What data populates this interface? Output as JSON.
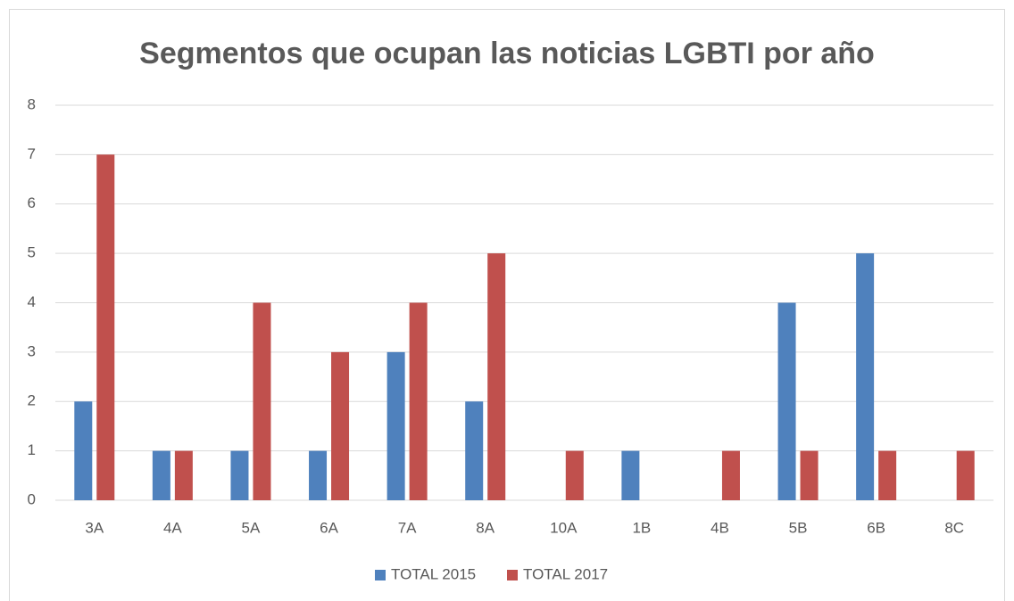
{
  "chart_data": {
    "type": "bar",
    "title": "Segmentos que ocupan las noticias LGBTI por año",
    "categories": [
      "3A",
      "4A",
      "5A",
      "6A",
      "7A",
      "8A",
      "10A",
      "1B",
      "4B",
      "5B",
      "6B",
      "8C"
    ],
    "series": [
      {
        "name": "TOTAL 2015",
        "color": "#4f81bd",
        "values": [
          2,
          1,
          1,
          1,
          3,
          2,
          0,
          1,
          0,
          4,
          5,
          0
        ]
      },
      {
        "name": "TOTAL 2017",
        "color": "#c0504d",
        "values": [
          7,
          1,
          4,
          3,
          4,
          5,
          1,
          0,
          1,
          1,
          1,
          1
        ]
      }
    ],
    "ylim": [
      0,
      8
    ],
    "yticks": [
      0,
      1,
      2,
      3,
      4,
      5,
      6,
      7,
      8
    ],
    "grid": true,
    "legend": "bottom"
  }
}
